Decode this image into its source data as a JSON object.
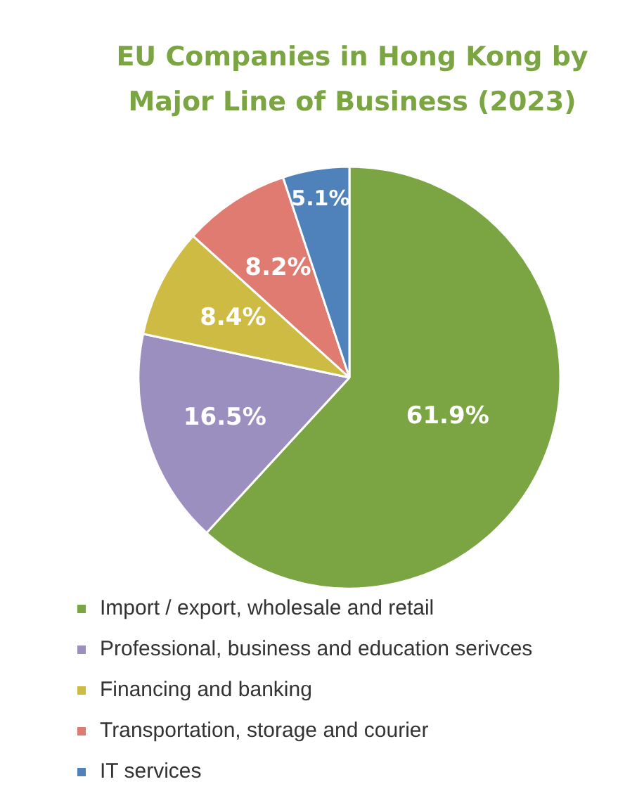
{
  "chart_data": {
    "type": "pie",
    "title": "EU Companies in Hong Kong by Major Line of Business (2023)",
    "categories": [
      "Import / export, wholesale and retail",
      "Professional, business and education serivces",
      "Financing and banking",
      "Transportation, storage and courier",
      "IT services"
    ],
    "values": [
      61.9,
      16.5,
      8.4,
      8.2,
      5.1
    ],
    "value_labels": [
      "61.9%",
      "16.5%",
      "8.4%",
      "8.2%",
      "5.1%"
    ],
    "colors": [
      "#7aa542",
      "#9b8fc0",
      "#cdbb44",
      "#e07b72",
      "#4f82bb"
    ],
    "legend": "bottom"
  }
}
